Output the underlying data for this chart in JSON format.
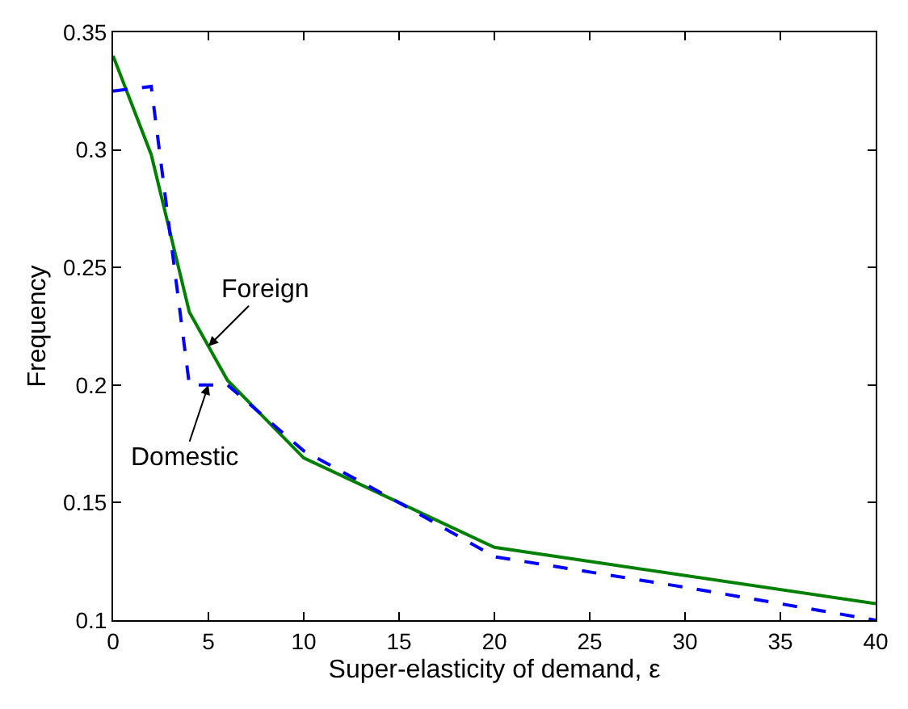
{
  "chart_data": {
    "type": "line",
    "xlabel": "Super-elasticity of demand, ε",
    "ylabel": "Frequency",
    "xlim": [
      0,
      40
    ],
    "xticks": [
      0,
      5,
      10,
      15,
      20,
      25,
      30,
      35,
      40
    ],
    "ylim": [
      0.1,
      0.35
    ],
    "yticks": [
      0.1,
      0.15,
      0.2,
      0.25,
      0.3,
      0.35
    ],
    "legend": false,
    "marker": "none",
    "series": [
      {
        "name": "Foreign",
        "color": "#008000",
        "line_style": "solid",
        "x": [
          0,
          2,
          4,
          6,
          10,
          15,
          20,
          40
        ],
        "values": [
          0.34,
          0.298,
          0.231,
          0.202,
          0.169,
          0.15,
          0.131,
          0.107
        ]
      },
      {
        "name": "Domestic",
        "color": "#0000ff",
        "line_style": "dashed",
        "x": [
          0,
          2,
          4,
          6,
          10,
          15,
          20,
          30,
          40
        ],
        "values": [
          0.325,
          0.327,
          0.2,
          0.2,
          0.172,
          0.15,
          0.127,
          0.114,
          0.1
        ]
      }
    ]
  }
}
